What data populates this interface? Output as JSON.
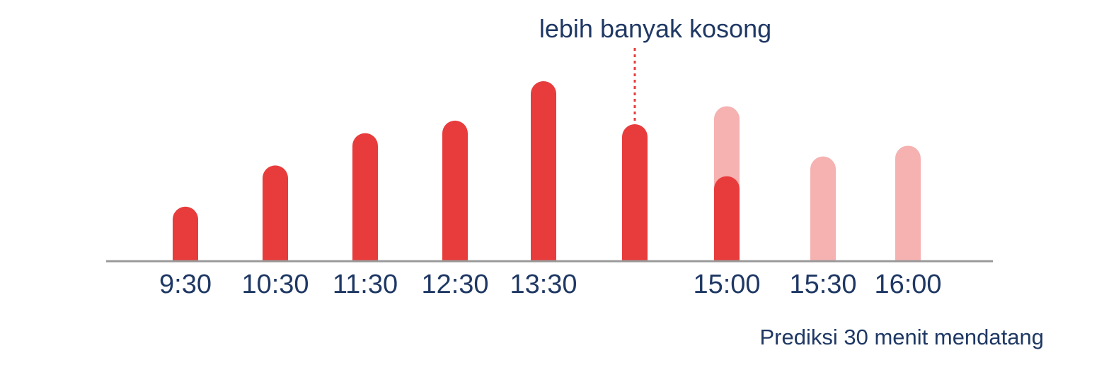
{
  "chart_data": {
    "type": "bar",
    "title": "",
    "xlabel": "",
    "ylabel": "",
    "ylim": [
      0,
      100
    ],
    "grid": false,
    "categories": [
      "9:30",
      "10:30",
      "11:30",
      "12:30",
      "13:30",
      "",
      "15:00",
      "15:30",
      "16:00"
    ],
    "series": [
      {
        "values": [
          30,
          53,
          71,
          78,
          100,
          76,
          47,
          null,
          null
        ]
      },
      {
        "values": [
          null,
          null,
          null,
          null,
          null,
          null,
          86,
          58,
          64
        ]
      }
    ],
    "annotations": [
      {
        "text": "lebih banyak kosong",
        "category_index": 5
      }
    ],
    "caption": "Prediksi 30 menit mendatang"
  },
  "colors": {
    "actual": "#e83c3c",
    "predicted": "#f6b1b1",
    "text": "#1f3864",
    "axis": "#9a9a9a",
    "marker": "#e83c3c"
  }
}
